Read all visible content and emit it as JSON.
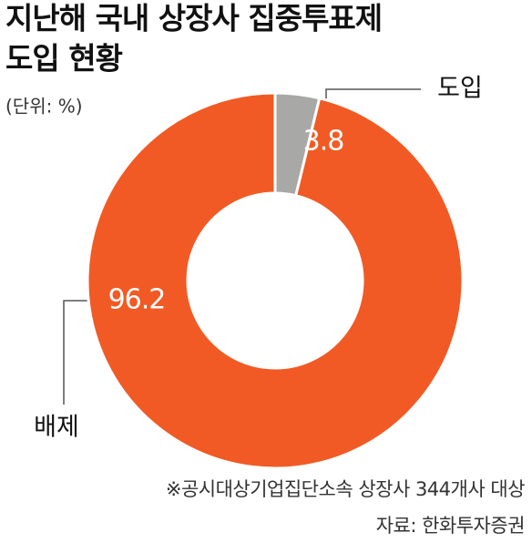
{
  "chart_data": {
    "type": "donut",
    "title": [
      "지난해 국내 상장사 집중투표제",
      "도입 현황"
    ],
    "unit": "(단위: %)",
    "categories": [
      "도입",
      "배제"
    ],
    "values": [
      3.8,
      96.2
    ],
    "colors": [
      "#a8a8a6",
      "#f15a24"
    ],
    "note": "※공시대상기업집단소속 상장사 344개사 대상",
    "source": "자료: 한화투자증권"
  }
}
